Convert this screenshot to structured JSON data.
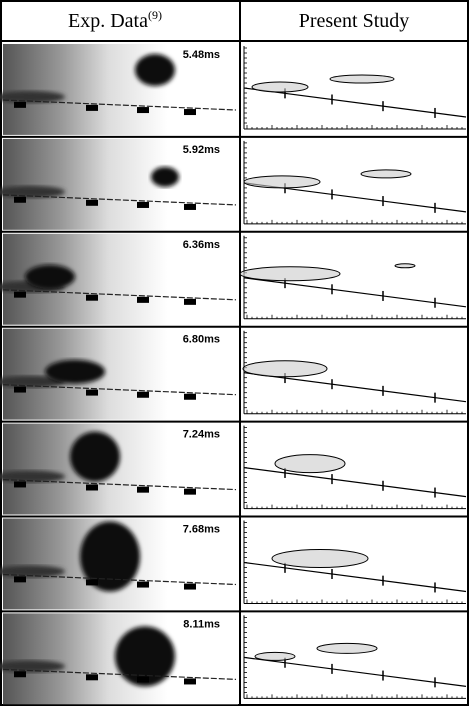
{
  "header": {
    "left": "Exp. Data",
    "left_ref": "(9)",
    "right": "Present Study"
  },
  "rows": [
    {
      "time": "5.48ms"
    },
    {
      "time": "5.92ms"
    },
    {
      "time": "6.36ms"
    },
    {
      "time": "6.80ms"
    },
    {
      "time": "7.24ms"
    },
    {
      "time": "7.68ms"
    },
    {
      "time": "8.11ms"
    }
  ]
}
